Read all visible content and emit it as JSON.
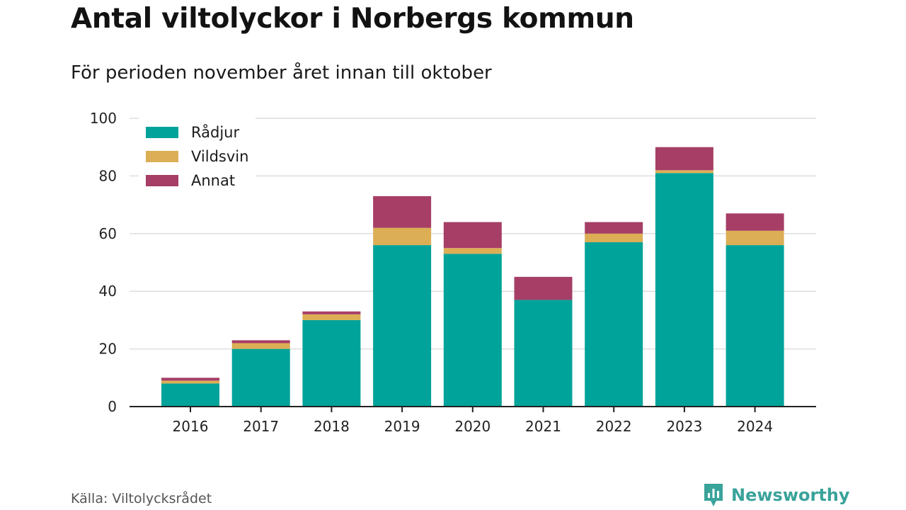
{
  "title": "Antal viltolyckor i Norbergs kommun",
  "subtitle": "För perioden november året innan till oktober",
  "source": "Källa: Viltolycksrådet",
  "brand": "Newsworthy",
  "colors": {
    "radjur": "#00a39a",
    "vildsvin": "#dcae55",
    "annat": "#a63e66",
    "grid": "#dedede",
    "axis": "#222222",
    "brand": "#3aa39a"
  },
  "chart_data": {
    "type": "bar",
    "stacked": true,
    "categories": [
      "2016",
      "2017",
      "2018",
      "2019",
      "2020",
      "2021",
      "2022",
      "2023",
      "2024"
    ],
    "series": [
      {
        "name": "Rådjur",
        "color": "#00a39a",
        "values": [
          8,
          20,
          30,
          56,
          53,
          37,
          57,
          81,
          56
        ]
      },
      {
        "name": "Vildsvin",
        "color": "#dcae55",
        "values": [
          1,
          2,
          2,
          6,
          2,
          0,
          3,
          1,
          5
        ]
      },
      {
        "name": "Annat",
        "color": "#a63e66",
        "values": [
          1,
          1,
          1,
          11,
          9,
          8,
          4,
          8,
          6
        ]
      }
    ],
    "ylim": [
      0,
      100
    ],
    "yticks": [
      0,
      20,
      40,
      60,
      80,
      100
    ],
    "grid": true,
    "legend_position": "top-left"
  }
}
